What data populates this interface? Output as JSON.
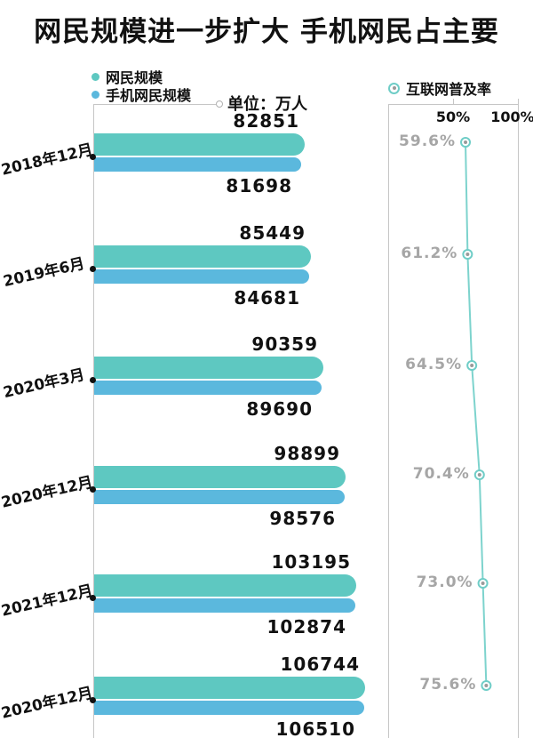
{
  "title": "网民规模进一步扩大 手机网民占主要",
  "colors": {
    "netizen_bar": "#5EC8C1",
    "mobile_bar": "#5BB8DD",
    "trend_line": "#7DD3CD",
    "marker_ring": "#6FCDC7",
    "marker_core": "#9A9A9A",
    "pct_label_gray": "#A6A6A6",
    "axis_gray": "#C6C6C6",
    "text_black": "#111111"
  },
  "chart_data": [
    {
      "type": "bar",
      "orientation": "horizontal",
      "unit_label": "单位：万人",
      "categories": [
        "2018年12月",
        "2019年6月",
        "2020年3月",
        "2020年12月",
        "2021年12月",
        "2020年12月"
      ],
      "series": [
        {
          "name": "网民规模",
          "color": "#5EC8C1",
          "values": [
            82851,
            85449,
            90359,
            98899,
            103195,
            106744
          ]
        },
        {
          "name": "手机网民规模",
          "color": "#5BB8DD",
          "values": [
            81698,
            84681,
            89690,
            98576,
            102874,
            106510
          ]
        }
      ],
      "xlim": [
        0,
        110000
      ],
      "value_labels_shown": true
    },
    {
      "type": "line",
      "name": "互联网普及率",
      "categories": [
        "2018年12月",
        "2019年6月",
        "2020年3月",
        "2020年12月",
        "2021年12月",
        "2020年12月"
      ],
      "values": [
        59.6,
        61.2,
        64.5,
        70.4,
        73.0,
        75.6
      ],
      "point_labels": [
        "59.6%",
        "61.2%",
        "64.5%",
        "70.4%",
        "73.0%",
        "75.6%"
      ],
      "axis_ticks": [
        "50%",
        "100%"
      ],
      "xlim": [
        0,
        100
      ],
      "axis_position": "top"
    }
  ]
}
